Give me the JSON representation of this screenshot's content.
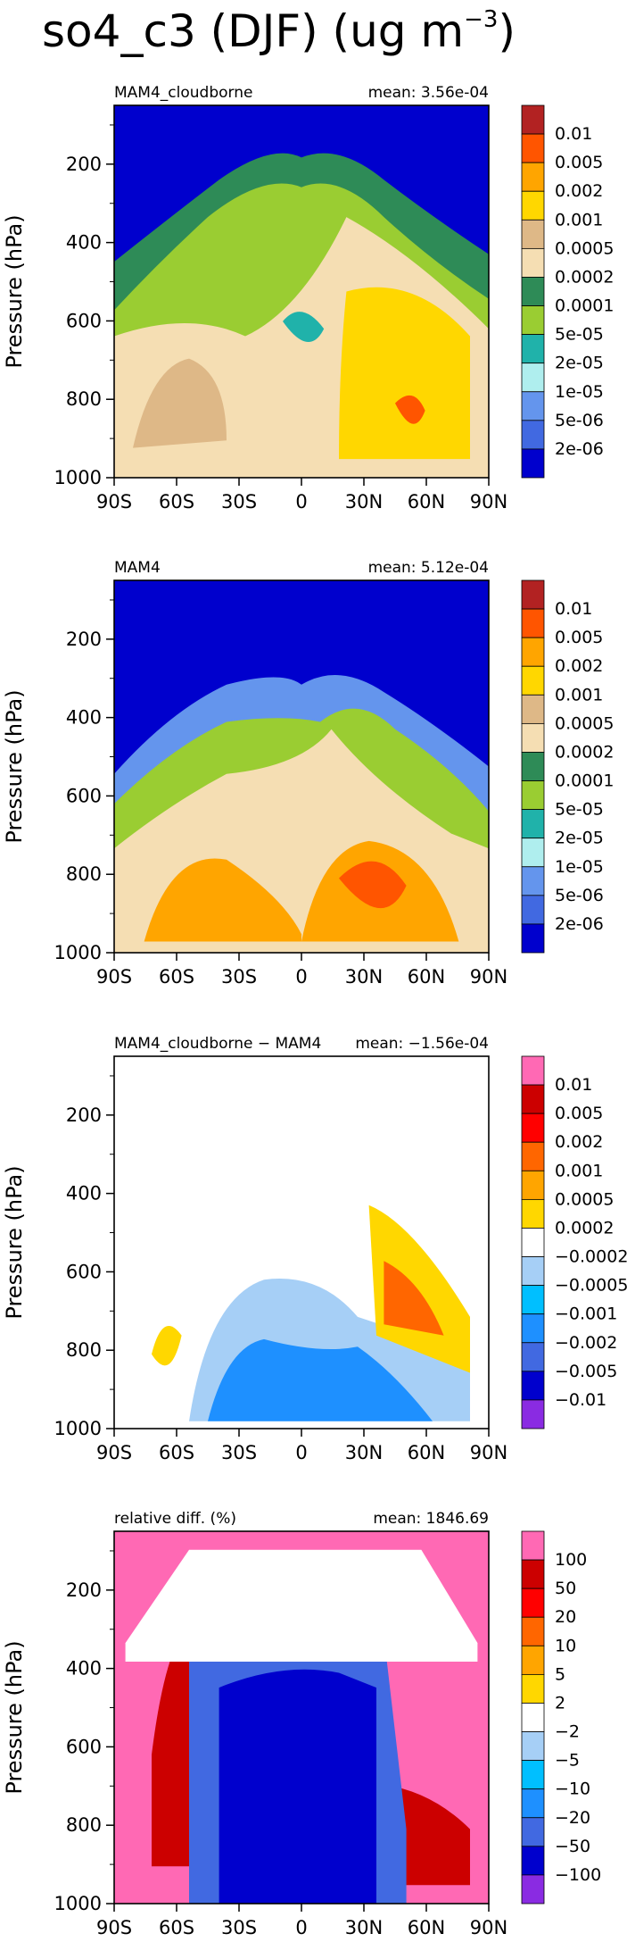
{
  "figure": {
    "title": "so4_c3 (DJF) (ug m",
    "title_exponent": "−3",
    "title_close": ")"
  },
  "chart_data": [
    {
      "type": "contour",
      "panel_title_left": "MAM4_cloudborne",
      "panel_title_right": "mean: 3.56e-04",
      "ylabel": "Pressure (hPa)",
      "yticks": [
        "200",
        "400",
        "600",
        "800",
        "1000"
      ],
      "xticks": [
        "90S",
        "60S",
        "30S",
        "0",
        "30N",
        "60N",
        "90N"
      ],
      "ylim": [
        50,
        1000
      ],
      "colorbar_labels": [
        "0.01",
        "0.005",
        "0.002",
        "0.001",
        "0.0005",
        "0.0002",
        "0.0001",
        "5e-05",
        "2e-05",
        "1e-05",
        "5e-06",
        "2e-06"
      ],
      "colorbar_colors": [
        "#b22222",
        "#ff5500",
        "#ffa500",
        "#ffd700",
        "#deb887",
        "#f5deb3",
        "#2e8b57",
        "#9acd32",
        "#20b2aa",
        "#afeeee",
        "#6495ed",
        "#4169e1",
        "#0000cd"
      ],
      "background_color": "#0000cd"
    },
    {
      "type": "contour",
      "panel_title_left": "MAM4",
      "panel_title_right": "mean: 5.12e-04",
      "ylabel": "Pressure (hPa)",
      "yticks": [
        "200",
        "400",
        "600",
        "800",
        "1000"
      ],
      "xticks": [
        "90S",
        "60S",
        "30S",
        "0",
        "30N",
        "60N",
        "90N"
      ],
      "ylim": [
        50,
        1000
      ],
      "colorbar_labels": [
        "0.01",
        "0.005",
        "0.002",
        "0.001",
        "0.0005",
        "0.0002",
        "0.0001",
        "5e-05",
        "2e-05",
        "1e-05",
        "5e-06",
        "2e-06"
      ],
      "colorbar_colors": [
        "#b22222",
        "#ff5500",
        "#ffa500",
        "#ffd700",
        "#deb887",
        "#f5deb3",
        "#2e8b57",
        "#9acd32",
        "#20b2aa",
        "#afeeee",
        "#6495ed",
        "#4169e1",
        "#0000cd"
      ],
      "background_color": "#0000cd"
    },
    {
      "type": "contour",
      "panel_title_left": "MAM4_cloudborne − MAM4",
      "panel_title_right": "mean: −1.56e-04",
      "ylabel": "Pressure (hPa)",
      "yticks": [
        "200",
        "400",
        "600",
        "800",
        "1000"
      ],
      "xticks": [
        "90S",
        "60S",
        "30S",
        "0",
        "30N",
        "60N",
        "90N"
      ],
      "ylim": [
        50,
        1000
      ],
      "colorbar_labels": [
        "0.01",
        "0.005",
        "0.002",
        "0.001",
        "0.0005",
        "0.0002",
        "−0.0002",
        "−0.0005",
        "−0.001",
        "−0.002",
        "−0.005",
        "−0.01"
      ],
      "colorbar_colors": [
        "#ff69b4",
        "#cc0000",
        "#ff0000",
        "#ff6600",
        "#ffa500",
        "#ffd700",
        "#ffffff",
        "#a6cff6",
        "#00bfff",
        "#1e90ff",
        "#4169e1",
        "#0000cd",
        "#8a2be2"
      ],
      "background_color": "#ffffff"
    },
    {
      "type": "contour",
      "panel_title_left": "relative diff. (%)",
      "panel_title_right": "mean: 1846.69",
      "ylabel": "Pressure (hPa)",
      "yticks": [
        "200",
        "400",
        "600",
        "800",
        "1000"
      ],
      "xticks": [
        "90S",
        "60S",
        "30S",
        "0",
        "30N",
        "60N",
        "90N"
      ],
      "ylim": [
        50,
        1000
      ],
      "colorbar_labels": [
        "100",
        "50",
        "20",
        "10",
        "5",
        "2",
        "−2",
        "−5",
        "−10",
        "−20",
        "−50",
        "−100"
      ],
      "colorbar_colors": [
        "#ff69b4",
        "#cc0000",
        "#ff0000",
        "#ff6600",
        "#ffa500",
        "#ffd700",
        "#ffffff",
        "#a6cff6",
        "#00bfff",
        "#1e90ff",
        "#4169e1",
        "#0000cd",
        "#8a2be2"
      ],
      "background_color": "#ff69b4"
    }
  ]
}
